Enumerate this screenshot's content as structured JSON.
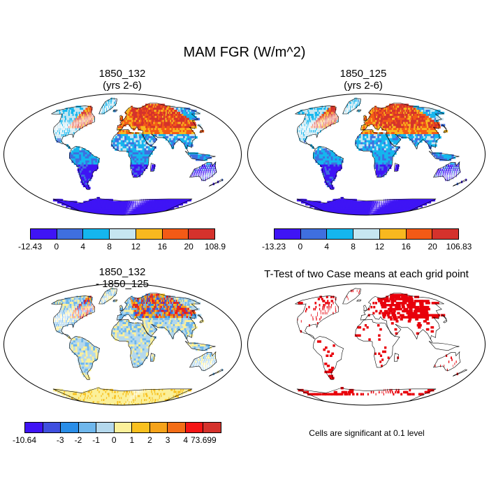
{
  "title": "MAM FGR (W/m^2)",
  "panels": {
    "top_left": {
      "line1": "1850_132",
      "line2": "(yrs 2-6)"
    },
    "top_right": {
      "line1": "1850_125",
      "line2": "(yrs 2-6)"
    },
    "bottom_left": {
      "line1": "1850_132",
      "line2": "- 1850_125"
    },
    "bottom_right": {
      "line1": "T-Test of two Case means at each grid point"
    }
  },
  "colorbars": {
    "top_left": {
      "colors": [
        "#3f14f5",
        "#3f6fdf",
        "#15b6ee",
        "#c6e6f1",
        "#f8b81f",
        "#f35a16",
        "#d5322c"
      ],
      "labels": [
        "-12.43",
        "0",
        "4",
        "8",
        "12",
        "16",
        "20",
        "108.9"
      ]
    },
    "top_right": {
      "colors": [
        "#3f14f5",
        "#3f6fdf",
        "#15b6ee",
        "#c6e6f1",
        "#f8b81f",
        "#f35a16",
        "#d5322c"
      ],
      "labels": [
        "-13.23",
        "0",
        "4",
        "8",
        "12",
        "16",
        "20",
        "106.83"
      ]
    },
    "bottom_left": {
      "colors": [
        "#3f14f5",
        "#3f4fdf",
        "#2a8ee8",
        "#6fb7ec",
        "#b4d8ec",
        "#fbf09a",
        "#f8c01f",
        "#f6a31a",
        "#f36d16",
        "#f51515",
        "#d5322c"
      ],
      "labels": [
        "-10.64",
        "",
        "-3",
        "-2",
        "-1",
        "0",
        "1",
        "2",
        "3",
        "4",
        "73.699"
      ]
    }
  },
  "significance_note": "Cells are significant at 0.1 level",
  "colors": {
    "ocean": "#ffffff",
    "coast": "#000000",
    "significant": "#e8000b"
  }
}
